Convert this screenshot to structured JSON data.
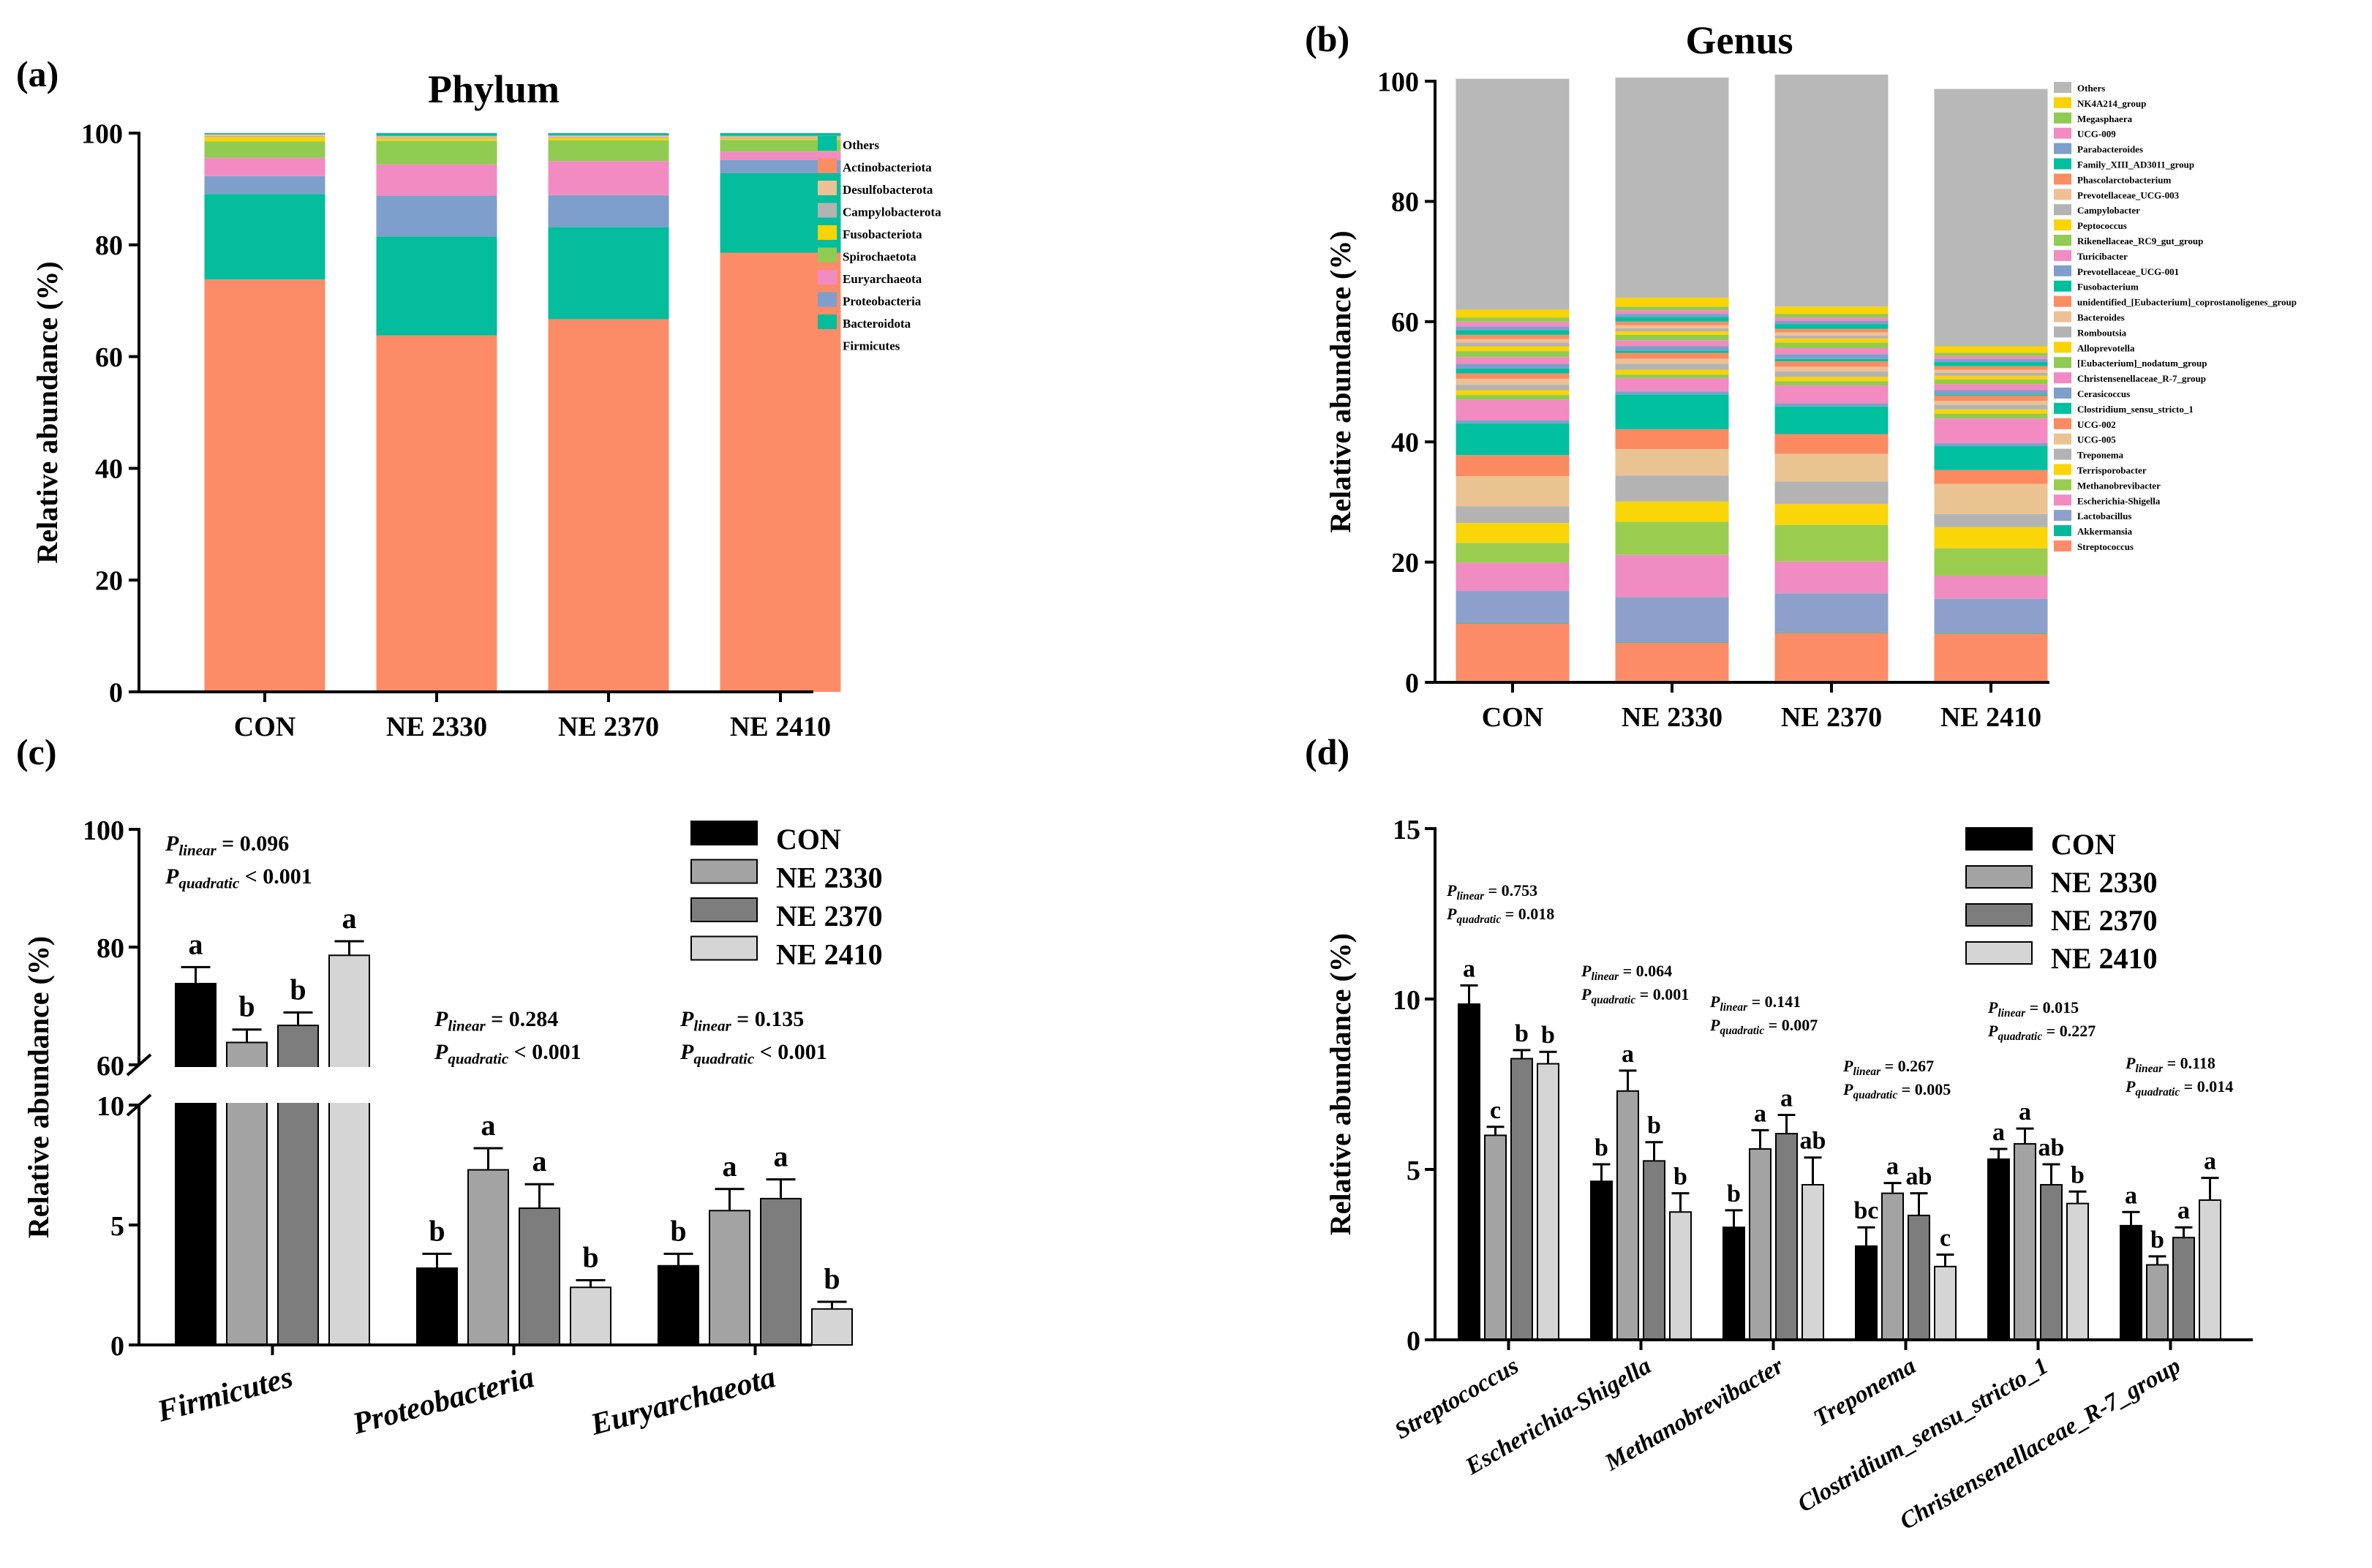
{
  "chart_data": [
    {
      "panel": "(a)",
      "type": "bar",
      "stacked": true,
      "title": "Phylum",
      "xlabel": "",
      "ylabel": "Relative abundance (%)",
      "ylim": [
        0,
        100
      ],
      "yticks": [
        0,
        20,
        40,
        60,
        80,
        100
      ],
      "categories": [
        "CON",
        "NE 2330",
        "NE 2370",
        "NE 2410"
      ],
      "legend_position": "right",
      "series": [
        {
          "name": "Firmicutes",
          "color": "#FC8C67",
          "values": [
            73.8,
            63.8,
            66.7,
            78.6
          ]
        },
        {
          "name": "Bacteroidota",
          "color": "#03BD9D",
          "values": [
            15.3,
            17.7,
            16.5,
            14.2
          ]
        },
        {
          "name": "Proteobacteria",
          "color": "#7E9FCB",
          "values": [
            3.2,
            7.3,
            5.7,
            2.4
          ]
        },
        {
          "name": "Euryarchaeota",
          "color": "#F28BC1",
          "values": [
            3.3,
            5.6,
            6.1,
            1.5
          ]
        },
        {
          "name": "Spirochaetota",
          "color": "#90CB52",
          "values": [
            2.9,
            4.2,
            3.7,
            2.1
          ]
        },
        {
          "name": "Fusobacteriota",
          "color": "#FAD402",
          "values": [
            0.8,
            0.4,
            0.4,
            0.2
          ]
        },
        {
          "name": "Campylobacterota",
          "color": "#B3B3B3",
          "values": [
            0.2,
            0.2,
            0.2,
            0.2
          ]
        },
        {
          "name": "Desulfobacterota",
          "color": "#EDC194",
          "values": [
            0.2,
            0.2,
            0.2,
            0.2
          ]
        },
        {
          "name": "Actinobacteriota",
          "color": "#FB8D62",
          "values": [
            0.1,
            0.1,
            0.1,
            0.1
          ]
        },
        {
          "name": "Others",
          "color": "#00BF9F",
          "values": [
            0.2,
            0.5,
            0.4,
            0.5
          ]
        }
      ]
    },
    {
      "panel": "(b)",
      "type": "bar",
      "stacked": true,
      "title": "Genus",
      "xlabel": "",
      "ylabel": "Relative abundance (%)",
      "ylim": [
        0,
        100
      ],
      "yticks": [
        0,
        20,
        40,
        60,
        80,
        100
      ],
      "categories": [
        "CON",
        "NE 2330",
        "NE 2370",
        "NE 2410"
      ],
      "legend_position": "right",
      "series": [
        {
          "name": "Streptococcus",
          "color": "#FC8C67",
          "values": [
            9.8,
            6.6,
            8.2,
            8.1
          ]
        },
        {
          "name": "Akkermansia",
          "color": "#00BA9A",
          "values": [
            0.1,
            0.1,
            0.1,
            0.1
          ]
        },
        {
          "name": "Lactobacillus",
          "color": "#8CA0CB",
          "values": [
            5.3,
            7.5,
            6.5,
            5.7
          ]
        },
        {
          "name": "Escherichia-Shigella",
          "color": "#F08CC2",
          "values": [
            4.7,
            7.0,
            5.3,
            3.8
          ]
        },
        {
          "name": "Methanobrevibacter",
          "color": "#9ACD4F",
          "values": [
            3.3,
            5.5,
            6.1,
            4.6
          ]
        },
        {
          "name": "Terrisporobacter",
          "color": "#FAD608",
          "values": [
            3.3,
            3.4,
            3.5,
            3.5
          ]
        },
        {
          "name": "Treponema",
          "color": "#B3B3B3",
          "values": [
            2.8,
            4.3,
            3.7,
            2.2
          ]
        },
        {
          "name": "UCG-005",
          "color": "#EBC393",
          "values": [
            5.0,
            4.4,
            4.6,
            5.0
          ]
        },
        {
          "name": "UCG-002",
          "color": "#FB8A60",
          "values": [
            3.5,
            3.3,
            3.3,
            2.3
          ]
        },
        {
          "name": "Clostridium_sensu_stricto_1",
          "color": "#00C0A0",
          "values": [
            5.3,
            5.8,
            4.6,
            4.0
          ]
        },
        {
          "name": "Cerasicoccus",
          "color": "#7E9FCB",
          "values": [
            0.5,
            0.5,
            0.5,
            0.5
          ]
        },
        {
          "name": "Christensenellaceae_R-7_group",
          "color": "#F28BC1",
          "values": [
            3.4,
            2.2,
            3.0,
            4.1
          ]
        },
        {
          "name": "[Eubacterium]_nodatum_group",
          "color": "#90CB52",
          "values": [
            0.8,
            0.6,
            0.7,
            0.8
          ]
        },
        {
          "name": "Alloprevotella",
          "color": "#FAD402",
          "values": [
            0.8,
            0.8,
            0.7,
            0.7
          ]
        },
        {
          "name": "Romboutsia",
          "color": "#B3B3B3",
          "values": [
            0.9,
            1.0,
            0.9,
            0.8
          ]
        },
        {
          "name": "Bacteroides",
          "color": "#EDC194",
          "values": [
            1.0,
            0.8,
            0.8,
            0.6
          ]
        },
        {
          "name": "unidentified_[Eubacterium]_coprostanoligenes_group",
          "color": "#FB8D62",
          "values": [
            0.9,
            1.0,
            0.9,
            0.9
          ]
        },
        {
          "name": "Fusobacterium",
          "color": "#00BF9F",
          "values": [
            0.8,
            0.4,
            0.4,
            0.2
          ]
        },
        {
          "name": "Prevotellaceae_UCG-001",
          "color": "#7E9FCB",
          "values": [
            0.8,
            0.7,
            0.8,
            0.7
          ]
        },
        {
          "name": "Turicibacter",
          "color": "#F28BC1",
          "values": [
            1.1,
            1.0,
            1.0,
            1.0
          ]
        },
        {
          "name": "Rikenellaceae_RC9_gut_group",
          "color": "#90CB52",
          "values": [
            1.0,
            0.9,
            0.9,
            0.8
          ]
        },
        {
          "name": "Peptococcus",
          "color": "#FAD402",
          "values": [
            0.8,
            0.6,
            0.7,
            0.6
          ]
        },
        {
          "name": "Campylobacter",
          "color": "#B3B3B3",
          "values": [
            0.6,
            0.5,
            0.5,
            0.5
          ]
        },
        {
          "name": "Prevotellaceae_UCG-003",
          "color": "#EDC194",
          "values": [
            0.6,
            0.5,
            0.5,
            0.5
          ]
        },
        {
          "name": "Phascolarctobacterium",
          "color": "#FB8D62",
          "values": [
            0.7,
            0.6,
            0.6,
            0.6
          ]
        },
        {
          "name": "Family_XIII_AD3011_group",
          "color": "#00BF9F",
          "values": [
            0.8,
            0.8,
            0.8,
            0.7
          ]
        },
        {
          "name": "Parabacteroides",
          "color": "#7E9FCB",
          "values": [
            0.6,
            0.5,
            0.5,
            0.5
          ]
        },
        {
          "name": "UCG-009",
          "color": "#F28BC1",
          "values": [
            0.8,
            0.6,
            0.6,
            0.5
          ]
        },
        {
          "name": "Megasphaera",
          "color": "#90CB52",
          "values": [
            0.7,
            0.6,
            0.6,
            0.5
          ]
        },
        {
          "name": "NK4A214_group",
          "color": "#FAD402",
          "values": [
            1.3,
            1.5,
            1.2,
            1.1
          ]
        },
        {
          "name": "Others",
          "color": "#B8B8B8",
          "values": [
            38.4,
            36.6,
            38.6,
            42.8
          ]
        }
      ]
    },
    {
      "panel": "(c)",
      "type": "bar",
      "title": "",
      "xlabel": "",
      "ylabel": "Relative abundance (%)",
      "axis_break": {
        "lower": [
          0,
          10
        ],
        "upper": [
          60,
          100
        ]
      },
      "yticks_lower": [
        0,
        5,
        10
      ],
      "yticks_upper": [
        60,
        80,
        100
      ],
      "categories": [
        "Firmicutes",
        "Proteobacteria",
        "Euryarchaeota"
      ],
      "legend_position": "top-right",
      "series": [
        {
          "name": "CON",
          "color": "#000000",
          "values": [
            73.8,
            3.2,
            3.3
          ],
          "errors": [
            2.8,
            0.6,
            0.5
          ],
          "letters": [
            "a",
            "b",
            "b"
          ]
        },
        {
          "name": "NE 2330",
          "color": "#A3A3A3",
          "values": [
            63.8,
            7.3,
            5.6
          ],
          "errors": [
            2.2,
            0.9,
            0.9
          ],
          "letters": [
            "b",
            "a",
            "a"
          ]
        },
        {
          "name": "NE 2370",
          "color": "#7D7D7D",
          "values": [
            66.7,
            5.7,
            6.1
          ],
          "errors": [
            2.2,
            1.0,
            0.8
          ],
          "letters": [
            "b",
            "a",
            "a"
          ]
        },
        {
          "name": "NE 2410",
          "color": "#D5D5D5",
          "values": [
            78.6,
            2.4,
            1.5
          ],
          "errors": [
            2.4,
            0.3,
            0.3
          ],
          "letters": [
            "a",
            "b",
            "b"
          ]
        }
      ],
      "annotations": [
        {
          "category": "Firmicutes",
          "p_linear": "= 0.096",
          "p_quadratic": "< 0.001"
        },
        {
          "category": "Proteobacteria",
          "p_linear": "= 0.284",
          "p_quadratic": "< 0.001"
        },
        {
          "category": "Euryarchaeota",
          "p_linear": "= 0.135",
          "p_quadratic": "< 0.001"
        }
      ],
      "p_symbol": "P",
      "p_linear_sub": "linear",
      "p_quadratic_sub": "quadratic"
    },
    {
      "panel": "(d)",
      "type": "bar",
      "title": "",
      "xlabel": "",
      "ylabel": "Relative abundance (%)",
      "ylim": [
        0,
        15
      ],
      "yticks": [
        0,
        5,
        10,
        15
      ],
      "categories": [
        "Streptococcus",
        "Escherichia-Shigella",
        "Methanobrevibacter",
        "Treponema",
        "Clostridium_sensu_stricto_1",
        "Christensenellaceae_R-7_group"
      ],
      "legend_position": "top-right",
      "series": [
        {
          "name": "CON",
          "color": "#000000",
          "values": [
            9.85,
            4.65,
            3.3,
            2.75,
            5.3,
            3.35
          ],
          "errors": [
            0.55,
            0.5,
            0.5,
            0.55,
            0.3,
            0.4
          ],
          "letters": [
            "a",
            "b",
            "b",
            "bc",
            "a",
            "a"
          ]
        },
        {
          "name": "NE 2330",
          "color": "#A3A3A3",
          "values": [
            6.0,
            7.3,
            5.6,
            4.3,
            5.75,
            2.2
          ],
          "errors": [
            0.25,
            0.6,
            0.55,
            0.3,
            0.45,
            0.25
          ],
          "letters": [
            "c",
            "a",
            "a",
            "a",
            "a",
            "b"
          ]
        },
        {
          "name": "NE 2370",
          "color": "#7D7D7D",
          "values": [
            8.25,
            5.25,
            6.05,
            3.65,
            4.55,
            3.0
          ],
          "errors": [
            0.25,
            0.55,
            0.55,
            0.65,
            0.6,
            0.3
          ],
          "letters": [
            "b",
            "b",
            "a",
            "ab",
            "ab",
            "a"
          ]
        },
        {
          "name": "NE 2410",
          "color": "#D5D5D5",
          "values": [
            8.1,
            3.75,
            4.55,
            2.15,
            4.0,
            4.1
          ],
          "errors": [
            0.35,
            0.55,
            0.8,
            0.35,
            0.35,
            0.65
          ],
          "letters": [
            "b",
            "b",
            "ab",
            "c",
            "b",
            "a"
          ]
        }
      ],
      "annotations": [
        {
          "category": "Streptococcus",
          "p_linear": "= 0.753",
          "p_quadratic": "= 0.018"
        },
        {
          "category": "Escherichia-Shigella",
          "p_linear": "= 0.064",
          "p_quadratic": "= 0.001"
        },
        {
          "category": "Methanobrevibacter",
          "p_linear": "= 0.141",
          "p_quadratic": "= 0.007"
        },
        {
          "category": "Treponema",
          "p_linear": "= 0.267",
          "p_quadratic": "= 0.005"
        },
        {
          "category": "Clostridium_sensu_stricto_1",
          "p_linear": "= 0.015",
          "p_quadratic": "= 0.227"
        },
        {
          "category": "Christensenellaceae_R-7_group",
          "p_linear": "= 0.118",
          "p_quadratic": "= 0.014"
        }
      ],
      "p_symbol": "P",
      "p_linear_sub": "linear",
      "p_quadratic_sub": "quadratic"
    }
  ]
}
